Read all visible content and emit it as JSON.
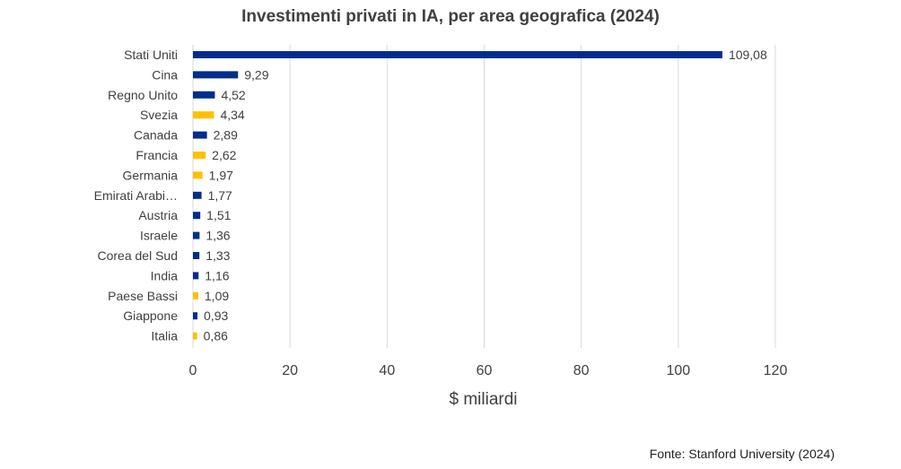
{
  "chart_data": {
    "type": "bar",
    "orientation": "horizontal",
    "title": "Investimenti privati in IA, per area geografica (2024)",
    "xlabel": "$ miliardi",
    "ylabel": "",
    "xlim": [
      0,
      120
    ],
    "xticks": [
      "0",
      "20",
      "40",
      "60",
      "80",
      "100",
      "120"
    ],
    "grid": "vertical",
    "categories": [
      "Stati Uniti",
      "Cina",
      "Regno Unito",
      "Svezia",
      "Canada",
      "Francia",
      "Germania",
      "Emirati Arabi…",
      "Austria",
      "Israele",
      "Corea del Sud",
      "India",
      "Paese Bassi",
      "Giappone",
      "Italia"
    ],
    "values": [
      109.08,
      9.29,
      4.52,
      4.34,
      2.89,
      2.62,
      1.97,
      1.77,
      1.51,
      1.36,
      1.33,
      1.16,
      1.09,
      0.93,
      0.86
    ],
    "value_labels": [
      "109,08",
      "9,29",
      "4,52",
      "4,34",
      "2,89",
      "2,62",
      "1,97",
      "1,77",
      "1,51",
      "1,36",
      "1,33",
      "1,16",
      "1,09",
      "0,93",
      "0,86"
    ],
    "bar_colors": [
      "#002D8F",
      "#002D8F",
      "#002D8F",
      "#FFC000",
      "#002D8F",
      "#FFC000",
      "#FFC000",
      "#002D8F",
      "#002D8F",
      "#002D8F",
      "#002D8F",
      "#002D8F",
      "#FFC000",
      "#002D8F",
      "#FFC000"
    ],
    "source": "Fonte: Stanford University (2024)"
  }
}
